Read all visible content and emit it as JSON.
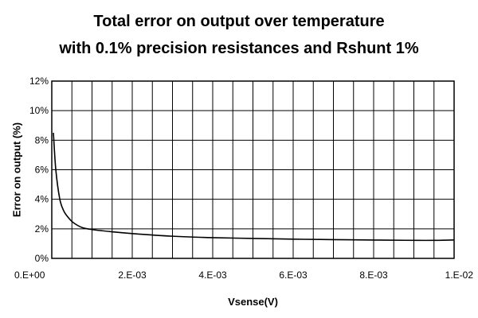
{
  "chart_data": {
    "type": "line",
    "title_line1": "Total error on output over temperature",
    "title_line2": "with 0.1% precision resistances and Rshunt 1%",
    "xlabel": "Vsense(V)",
    "ylabel": "Error on output (%)",
    "xlim": [
      0,
      0.01
    ],
    "ylim": [
      0,
      12
    ],
    "grid": true,
    "x_ticks": [
      {
        "value": 0,
        "label": "0.E+00"
      },
      {
        "value": 0.002,
        "label": "2.E-03"
      },
      {
        "value": 0.004,
        "label": "4.E-03"
      },
      {
        "value": 0.006,
        "label": "6.E-03"
      },
      {
        "value": 0.008,
        "label": "8.E-03"
      },
      {
        "value": 0.01,
        "label": "1.E-02"
      }
    ],
    "x_grid_divisions": 20,
    "y_ticks": [
      {
        "value": 0,
        "label": "0%"
      },
      {
        "value": 2,
        "label": "2%"
      },
      {
        "value": 4,
        "label": "4%"
      },
      {
        "value": 6,
        "label": "6%"
      },
      {
        "value": 8,
        "label": "8%"
      },
      {
        "value": 10,
        "label": "10%"
      },
      {
        "value": 12,
        "label": "12%"
      }
    ],
    "series": [
      {
        "color": "#000000",
        "points": [
          [
            4e-05,
            8.5
          ],
          [
            0.0001,
            6.0
          ],
          [
            0.0002,
            4.0
          ],
          [
            0.0003,
            3.2
          ],
          [
            0.0004,
            2.8
          ],
          [
            0.0005,
            2.5
          ],
          [
            0.0006,
            2.3
          ],
          [
            0.0007,
            2.15
          ],
          [
            0.0008,
            2.05
          ],
          [
            0.001,
            1.95
          ],
          [
            0.0015,
            1.8
          ],
          [
            0.002,
            1.68
          ],
          [
            0.003,
            1.5
          ],
          [
            0.004,
            1.4
          ],
          [
            0.005,
            1.35
          ],
          [
            0.006,
            1.3
          ],
          [
            0.007,
            1.27
          ],
          [
            0.008,
            1.24
          ],
          [
            0.009,
            1.22
          ],
          [
            0.0095,
            1.22
          ],
          [
            0.01,
            1.25
          ]
        ]
      }
    ]
  }
}
